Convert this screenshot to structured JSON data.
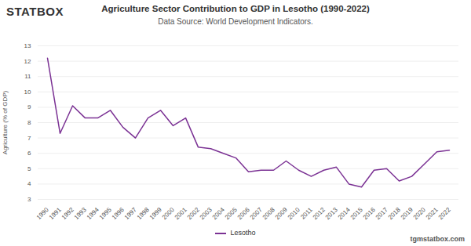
{
  "chart_data": {
    "type": "line",
    "title": "Agriculture Sector Contribution to GDP in Lesotho (1990-2022)",
    "subtitle": "Data Source: World Development Indicators.",
    "logo": "STATBOX",
    "footer": "tgmstatbox.com",
    "y_label": "Agriculture (% of GDP)",
    "categories": [
      "1990",
      "1991",
      "1992",
      "1993",
      "1994",
      "1995",
      "1996",
      "1997",
      "1998",
      "1999",
      "2000",
      "2001",
      "2002",
      "2003",
      "2004",
      "2005",
      "2006",
      "2007",
      "2008",
      "2009",
      "2010",
      "2011",
      "2012",
      "2013",
      "2014",
      "2015",
      "2016",
      "2017",
      "2018",
      "2019",
      "2020",
      "2021",
      "2022"
    ],
    "series": [
      {
        "name": "Lesotho",
        "color": "#7b3294",
        "values": [
          12.2,
          7.3,
          9.1,
          8.3,
          8.3,
          8.8,
          7.7,
          7.0,
          8.3,
          8.8,
          7.8,
          8.3,
          6.4,
          6.3,
          6.0,
          5.7,
          4.8,
          4.9,
          4.9,
          5.5,
          4.9,
          4.5,
          4.9,
          5.1,
          4.0,
          3.8,
          4.9,
          5.0,
          4.2,
          4.5,
          5.3,
          6.1,
          6.2
        ]
      }
    ],
    "ylim": [
      3,
      13
    ],
    "yticks": [
      3,
      4,
      5,
      6,
      7,
      8,
      9,
      10,
      11,
      12,
      13
    ],
    "grid": true,
    "legend": "bottom"
  }
}
